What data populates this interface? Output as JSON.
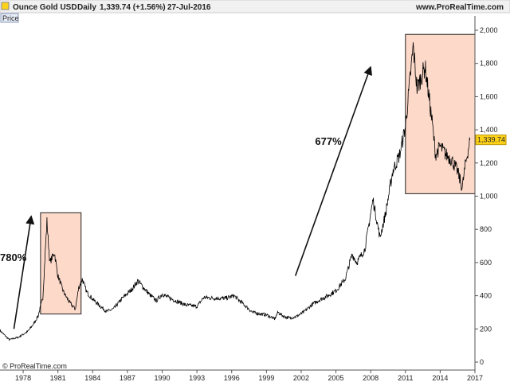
{
  "header": {
    "instrument": "Ounce Gold USD",
    "period": "Daily",
    "quote": "1,339.74 (+1.56%)",
    "date": "27-Jul-2016",
    "site": "www.ProRealTime.com"
  },
  "panel_label": "Price",
  "footer_copyright": "© ProRealTime.com",
  "price_tag": "1,339.74",
  "colors": {
    "price_line": "#000000",
    "box_fill": "#fdd9c9",
    "box_stroke": "#222222",
    "price_tag_bg": "#ffd21a",
    "grid": "#e5e5e5"
  },
  "chart_data": {
    "type": "line",
    "series": [
      {
        "values": [
          [
            1976.0,
            190
          ],
          [
            1976.8,
            135
          ],
          [
            1977.6,
            150
          ],
          [
            1978.4,
            185
          ],
          [
            1978.9,
            230
          ],
          [
            1979.3,
            280
          ],
          [
            1979.7,
            390
          ],
          [
            1980.05,
            850
          ],
          [
            1980.3,
            600
          ],
          [
            1980.7,
            660
          ],
          [
            1981.0,
            520
          ],
          [
            1981.5,
            420
          ],
          [
            1982.0,
            360
          ],
          [
            1982.5,
            320
          ],
          [
            1982.8,
            450
          ],
          [
            1983.1,
            500
          ],
          [
            1983.5,
            420
          ],
          [
            1984.0,
            380
          ],
          [
            1984.6,
            340
          ],
          [
            1985.2,
            305
          ],
          [
            1985.8,
            320
          ],
          [
            1986.5,
            380
          ],
          [
            1987.4,
            440
          ],
          [
            1987.9,
            490
          ],
          [
            1988.5,
            440
          ],
          [
            1989.0,
            400
          ],
          [
            1989.5,
            370
          ],
          [
            1990.0,
            410
          ],
          [
            1990.5,
            390
          ],
          [
            1991.0,
            375
          ],
          [
            1992.0,
            345
          ],
          [
            1993.0,
            335
          ],
          [
            1993.6,
            390
          ],
          [
            1994.5,
            385
          ],
          [
            1995.5,
            385
          ],
          [
            1996.2,
            400
          ],
          [
            1997.0,
            350
          ],
          [
            1997.8,
            300
          ],
          [
            1998.5,
            290
          ],
          [
            1999.0,
            285
          ],
          [
            1999.7,
            260
          ],
          [
            2000.0,
            300
          ],
          [
            2000.5,
            275
          ],
          [
            2001.0,
            265
          ],
          [
            2001.6,
            275
          ],
          [
            2002.2,
            300
          ],
          [
            2003.0,
            350
          ],
          [
            2003.6,
            375
          ],
          [
            2004.3,
            400
          ],
          [
            2005.0,
            430
          ],
          [
            2005.8,
            500
          ],
          [
            2006.4,
            650
          ],
          [
            2006.8,
            600
          ],
          [
            2007.5,
            680
          ],
          [
            2008.2,
            980
          ],
          [
            2008.8,
            750
          ],
          [
            2009.3,
            900
          ],
          [
            2009.9,
            1150
          ],
          [
            2010.5,
            1250
          ],
          [
            2011.0,
            1420
          ],
          [
            2011.67,
            1900
          ],
          [
            2012.0,
            1650
          ],
          [
            2012.7,
            1780
          ],
          [
            2013.3,
            1450
          ],
          [
            2013.6,
            1250
          ],
          [
            2014.0,
            1300
          ],
          [
            2014.5,
            1250
          ],
          [
            2015.0,
            1220
          ],
          [
            2015.5,
            1150
          ],
          [
            2015.9,
            1050
          ],
          [
            2016.2,
            1200
          ],
          [
            2016.57,
            1339.74
          ]
        ]
      }
    ],
    "x_ticks": [
      "1978",
      "1981",
      "1984",
      "1987",
      "1990",
      "1993",
      "1996",
      "1999",
      "2002",
      "2005",
      "2008",
      "2011",
      "2014",
      "2017"
    ],
    "y_ticks": [
      "0",
      "200",
      "400",
      "600",
      "800",
      "1,000",
      "1,200",
      "1,400",
      "1,600",
      "1,800",
      "2,000"
    ],
    "xlim": [
      1976.0,
      2017.0
    ],
    "ylim": [
      0,
      2000
    ],
    "annotations": [
      {
        "kind": "box",
        "x0": 1979.5,
        "x1": 1983.0,
        "y0": 290,
        "y1": 900
      },
      {
        "kind": "box",
        "x0": 2011.0,
        "x1": 2017.0,
        "y0": 1015,
        "y1": 1975
      },
      {
        "kind": "arrow",
        "x0": 1977.2,
        "y0": 200,
        "x1": 1978.7,
        "y1": 880
      },
      {
        "kind": "arrow",
        "x0": 2001.5,
        "y0": 520,
        "x1": 2008.0,
        "y1": 1780
      },
      {
        "kind": "text",
        "label": "780%",
        "x": 1976.0,
        "y": 610
      },
      {
        "kind": "text",
        "label": "677%",
        "x": 2003.2,
        "y": 1310
      }
    ],
    "grid": false,
    "legend": "none"
  }
}
